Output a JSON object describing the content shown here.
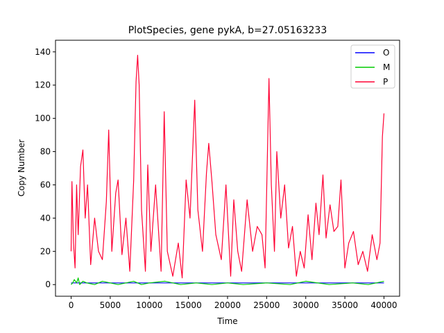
{
  "chart_data": {
    "type": "line",
    "title": "PlotSpecies, gene pykA, b=27.05163233",
    "xlabel": "Time",
    "ylabel": "Copy Number",
    "xlim": [
      -2000,
      42000
    ],
    "ylim": [
      -7,
      147
    ],
    "x_ticks": [
      0,
      5000,
      10000,
      15000,
      20000,
      25000,
      30000,
      35000,
      40000
    ],
    "x_tick_labels": [
      "0",
      "5000",
      "10000",
      "15000",
      "20000",
      "25000",
      "30000",
      "35000",
      "40000"
    ],
    "y_ticks": [
      0,
      20,
      40,
      60,
      80,
      100,
      120,
      140
    ],
    "y_tick_labels": [
      "0",
      "20",
      "40",
      "60",
      "80",
      "100",
      "120",
      "140"
    ],
    "grid": false,
    "legend": {
      "position": "top-right",
      "entries": [
        "O",
        "M",
        "P"
      ]
    },
    "series": [
      {
        "name": "O",
        "color": "#0000ff",
        "x": [
          0,
          40000
        ],
        "y": [
          1,
          1
        ]
      },
      {
        "name": "M",
        "color": "#00cc00",
        "x": [
          0,
          200,
          400,
          700,
          900,
          1100,
          1500,
          2000,
          3000,
          4000,
          5000,
          6000,
          7000,
          8000,
          9000,
          10000,
          12000,
          14000,
          16000,
          18000,
          20000,
          22000,
          25000,
          28000,
          30000,
          33000,
          36000,
          38000,
          40000
        ],
        "y": [
          0,
          1,
          3,
          1,
          4,
          0,
          2,
          1,
          0,
          2,
          1,
          0,
          1,
          2,
          0,
          1,
          2,
          0,
          1,
          0,
          1,
          0,
          1,
          0,
          2,
          0,
          1,
          0,
          2
        ]
      },
      {
        "name": "P",
        "color": "#ff0033",
        "x": [
          0,
          100,
          300,
          500,
          700,
          900,
          1200,
          1500,
          1800,
          2100,
          2500,
          3000,
          3500,
          4000,
          4500,
          4800,
          5200,
          5700,
          6000,
          6500,
          7000,
          7500,
          8000,
          8300,
          8500,
          8700,
          9000,
          9500,
          9800,
          10200,
          10800,
          11500,
          11900,
          12300,
          13000,
          13700,
          14200,
          14700,
          15200,
          15800,
          16200,
          16800,
          17300,
          17600,
          18000,
          18500,
          19200,
          19800,
          20400,
          20800,
          21300,
          21800,
          22500,
          23200,
          23800,
          24400,
          24800,
          25300,
          25600,
          26000,
          26300,
          26800,
          27300,
          27800,
          28300,
          28800,
          29300,
          29800,
          30300,
          30800,
          31300,
          31700,
          32200,
          32600,
          33100,
          33600,
          34100,
          34500,
          35000,
          35500,
          36100,
          36700,
          37300,
          37900,
          38500,
          39100,
          39500,
          39800,
          40000
        ],
        "y": [
          20,
          62,
          25,
          10,
          60,
          30,
          71,
          81,
          40,
          60,
          12,
          40,
          20,
          15,
          50,
          93,
          20,
          55,
          63,
          18,
          40,
          8,
          63,
          122,
          138,
          120,
          45,
          8,
          72,
          20,
          60,
          8,
          104,
          20,
          5,
          25,
          4,
          63,
          40,
          111,
          45,
          20,
          67,
          85,
          62,
          30,
          15,
          60,
          5,
          51,
          20,
          8,
          51,
          20,
          35,
          30,
          10,
          124,
          60,
          20,
          80,
          40,
          60,
          22,
          35,
          5,
          20,
          10,
          42,
          15,
          49,
          30,
          66,
          28,
          48,
          32,
          35,
          63,
          10,
          25,
          32,
          12,
          20,
          8,
          30,
          15,
          25,
          89,
          103
        ]
      }
    ]
  }
}
